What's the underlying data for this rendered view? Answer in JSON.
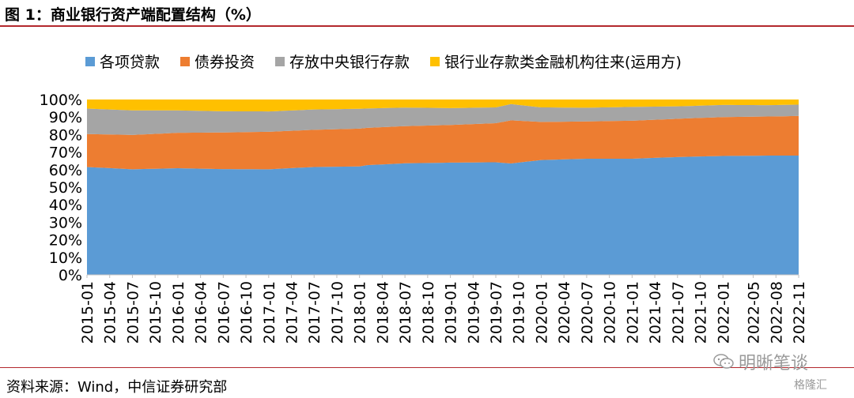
{
  "title": "图 1：商业银行资产端配置结构（%）",
  "source": "资料来源：Wind，中信证券研究部",
  "watermark": {
    "text": "明晰笔谈",
    "logo": "格隆汇",
    "icon": "wechat-icon"
  },
  "colors": {
    "loans": "#5b9bd5",
    "bonds": "#ed7d31",
    "central": "#a5a5a5",
    "interbank": "#ffc000",
    "rule": "#b3282d"
  },
  "chart_data": {
    "type": "area",
    "stacked": true,
    "stack_total": 100,
    "x": [
      "2015-01",
      "2015-02",
      "2015-03",
      "2015-04",
      "2015-05",
      "2015-06",
      "2015-07",
      "2015-08",
      "2015-09",
      "2015-10",
      "2015-11",
      "2015-12",
      "2016-01",
      "2016-02",
      "2016-03",
      "2016-04",
      "2016-05",
      "2016-06",
      "2016-07",
      "2016-08",
      "2016-09",
      "2016-10",
      "2016-11",
      "2016-12",
      "2017-01",
      "2017-02",
      "2017-03",
      "2017-04",
      "2017-05",
      "2017-06",
      "2017-07",
      "2017-08",
      "2017-09",
      "2017-10",
      "2017-11",
      "2017-12",
      "2018-01",
      "2018-02",
      "2018-03",
      "2018-04",
      "2018-05",
      "2018-06",
      "2018-07",
      "2018-08",
      "2018-09",
      "2018-10",
      "2018-11",
      "2018-12",
      "2019-01",
      "2019-02",
      "2019-03",
      "2019-04",
      "2019-05",
      "2019-06",
      "2019-07",
      "2019-08",
      "2019-09",
      "2019-10",
      "2019-11",
      "2019-12",
      "2020-01",
      "2020-02",
      "2020-03",
      "2020-04",
      "2020-05",
      "2020-06",
      "2020-07",
      "2020-08",
      "2020-09",
      "2020-10",
      "2020-11",
      "2020-12",
      "2021-01",
      "2021-02",
      "2021-03",
      "2021-04",
      "2021-05",
      "2021-06",
      "2021-07",
      "2021-08",
      "2021-09",
      "2021-10",
      "2021-11",
      "2021-12",
      "2022-01",
      "2022-02",
      "2022-03",
      "2022-04",
      "2022-05",
      "2022-06",
      "2022-07",
      "2022-08",
      "2022-09",
      "2022-10",
      "2022-11"
    ],
    "x_tick_labels": [
      "2015-01",
      "2015-04",
      "2015-07",
      "2015-10",
      "2016-01",
      "2016-04",
      "2016-07",
      "2016-10",
      "2017-01",
      "2017-04",
      "2017-07",
      "2017-10",
      "2018-01",
      "2018-04",
      "2018-07",
      "2018-10",
      "2019-01",
      "2019-04",
      "2019-07",
      "2019-10",
      "2020-01",
      "2020-04",
      "2020-07",
      "2020-10",
      "2021-01",
      "2021-04",
      "2021-07",
      "2021-10",
      "2022-01",
      "2022-05",
      "2022-08",
      "2022-11"
    ],
    "y_tick_labels": [
      "0%",
      "10%",
      "20%",
      "30%",
      "40%",
      "50%",
      "60%",
      "70%",
      "80%",
      "90%",
      "100%"
    ],
    "ylim": [
      0,
      100
    ],
    "grid": false,
    "legend_position": "top",
    "series": [
      {
        "name": "各项贷款",
        "color": "#5b9bd5",
        "anchors": [
          [
            0,
            61.5
          ],
          [
            6,
            60.2
          ],
          [
            12,
            60.8
          ],
          [
            18,
            60.3
          ],
          [
            24,
            60.2
          ],
          [
            30,
            61.5
          ],
          [
            36,
            61.8
          ],
          [
            37,
            63.3
          ],
          [
            42,
            63.6
          ],
          [
            48,
            64.0
          ],
          [
            54,
            64.2
          ],
          [
            56,
            63.5
          ],
          [
            60,
            65.5
          ],
          [
            66,
            66.2
          ],
          [
            72,
            66.2
          ],
          [
            78,
            67.2
          ],
          [
            84,
            67.8
          ],
          [
            90,
            68.0
          ],
          [
            94,
            68.0
          ]
        ]
      },
      {
        "name": "债券投资",
        "color": "#ed7d31",
        "anchors": [
          [
            0,
            18.8
          ],
          [
            6,
            19.6
          ],
          [
            12,
            20.2
          ],
          [
            18,
            20.9
          ],
          [
            24,
            21.4
          ],
          [
            30,
            21.2
          ],
          [
            36,
            21.6
          ],
          [
            42,
            21.2
          ],
          [
            48,
            21.5
          ],
          [
            54,
            22.3
          ],
          [
            56,
            24.6
          ],
          [
            60,
            21.7
          ],
          [
            66,
            21.3
          ],
          [
            72,
            21.7
          ],
          [
            78,
            21.8
          ],
          [
            84,
            22.2
          ],
          [
            90,
            22.3
          ],
          [
            94,
            22.6
          ]
        ]
      },
      {
        "name": "存放中央银行存款",
        "color": "#a5a5a5",
        "anchors": [
          [
            0,
            14.5
          ],
          [
            6,
            14.0
          ],
          [
            12,
            12.8
          ],
          [
            18,
            12.1
          ],
          [
            24,
            11.6
          ],
          [
            30,
            11.6
          ],
          [
            36,
            11.3
          ],
          [
            42,
            10.6
          ],
          [
            48,
            9.6
          ],
          [
            54,
            9.0
          ],
          [
            56,
            9.3
          ],
          [
            60,
            8.3
          ],
          [
            66,
            7.8
          ],
          [
            72,
            7.9
          ],
          [
            78,
            7.1
          ],
          [
            84,
            6.9
          ],
          [
            90,
            6.5
          ],
          [
            94,
            6.5
          ]
        ]
      },
      {
        "name": "银行业存款类金融机构往来(运用方)",
        "color": "#ffc000",
        "anchors": [
          [
            0,
            5.2
          ],
          [
            6,
            6.2
          ],
          [
            12,
            6.2
          ],
          [
            18,
            6.7
          ],
          [
            24,
            6.8
          ],
          [
            30,
            5.7
          ],
          [
            36,
            5.3
          ],
          [
            42,
            4.6
          ],
          [
            48,
            4.9
          ],
          [
            54,
            4.5
          ],
          [
            56,
            2.6
          ],
          [
            60,
            4.5
          ],
          [
            66,
            4.7
          ],
          [
            72,
            4.2
          ],
          [
            78,
            3.9
          ],
          [
            84,
            3.1
          ],
          [
            90,
            3.2
          ],
          [
            94,
            2.9
          ]
        ]
      }
    ]
  }
}
